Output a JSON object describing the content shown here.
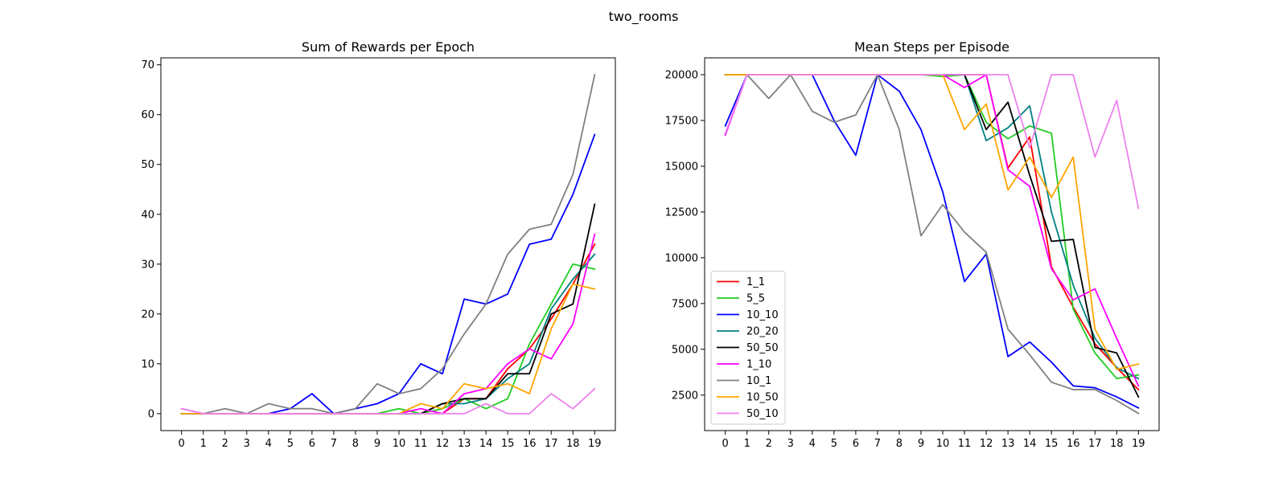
{
  "figure": {
    "suptitle": "two_rooms"
  },
  "chart_data": [
    {
      "type": "line",
      "title": "Sum of Rewards per Epoch",
      "xlabel": "",
      "ylabel": "",
      "x": [
        0,
        1,
        2,
        3,
        4,
        5,
        6,
        7,
        8,
        9,
        10,
        11,
        12,
        13,
        14,
        15,
        16,
        17,
        18,
        19
      ],
      "xticks": [
        "0",
        "1",
        "2",
        "3",
        "4",
        "5",
        "6",
        "7",
        "8",
        "9",
        "10",
        "11",
        "12",
        "13",
        "14",
        "15",
        "16",
        "17",
        "18",
        "19"
      ],
      "yticks": [
        0,
        10,
        20,
        30,
        40,
        50,
        60,
        70
      ],
      "ytick_labels": [
        "0",
        "10",
        "20",
        "30",
        "40",
        "50",
        "60",
        "70"
      ],
      "xlim": [
        -0.95,
        19.95
      ],
      "ylim": [
        -3.4,
        71.4
      ],
      "grid": false,
      "legend": null,
      "series": [
        {
          "name": "1_1",
          "color": "#ff0000",
          "values": [
            0,
            0,
            0,
            0,
            0,
            0,
            0,
            0,
            0,
            0,
            0,
            0,
            0,
            3,
            3,
            9,
            13,
            19,
            26,
            34
          ]
        },
        {
          "name": "5_5",
          "color": "#22cc22",
          "values": [
            0,
            0,
            0,
            0,
            0,
            0,
            0,
            0,
            0,
            0,
            1,
            0,
            1,
            3,
            1,
            3,
            14,
            22,
            30,
            29
          ]
        },
        {
          "name": "10_10",
          "color": "#0000ff",
          "values": [
            0,
            0,
            0,
            0,
            0,
            1,
            4,
            0,
            1,
            2,
            4,
            10,
            8,
            23,
            22,
            24,
            34,
            35,
            44,
            56
          ]
        },
        {
          "name": "20_20",
          "color": "#008080",
          "values": [
            0,
            0,
            0,
            0,
            0,
            0,
            0,
            0,
            0,
            0,
            0,
            0,
            2,
            2,
            3,
            7,
            10,
            21,
            27,
            32
          ]
        },
        {
          "name": "50_50",
          "color": "#000000",
          "values": [
            0,
            0,
            0,
            0,
            0,
            0,
            0,
            0,
            0,
            0,
            0,
            0,
            2,
            3,
            3,
            8,
            8,
            20,
            22,
            42
          ]
        },
        {
          "name": "1_10",
          "color": "#ff00ff",
          "values": [
            1,
            0,
            0,
            0,
            0,
            0,
            0,
            0,
            0,
            0,
            0,
            1,
            0,
            4,
            5,
            10,
            13,
            11,
            18,
            36
          ]
        },
        {
          "name": "10_1",
          "color": "#808080",
          "values": [
            0,
            0,
            1,
            0,
            2,
            1,
            1,
            0,
            1,
            6,
            4,
            5,
            9,
            16,
            22,
            32,
            37,
            38,
            48,
            68
          ]
        },
        {
          "name": "10_50",
          "color": "#ffa500",
          "values": [
            0,
            0,
            0,
            0,
            0,
            0,
            0,
            0,
            0,
            0,
            0,
            2,
            1,
            6,
            5,
            6,
            4,
            17,
            26,
            25
          ]
        },
        {
          "name": "50_10",
          "color": "#ee82ee",
          "values": [
            1,
            0,
            0,
            0,
            0,
            0,
            0,
            0,
            0,
            0,
            0,
            0,
            0,
            0,
            2,
            0,
            0,
            4,
            1,
            5
          ]
        }
      ]
    },
    {
      "type": "line",
      "title": "Mean Steps per Episode",
      "xlabel": "",
      "ylabel": "",
      "x": [
        0,
        1,
        2,
        3,
        4,
        5,
        6,
        7,
        8,
        9,
        10,
        11,
        12,
        13,
        14,
        15,
        16,
        17,
        18,
        19
      ],
      "xticks": [
        "0",
        "1",
        "2",
        "3",
        "4",
        "5",
        "6",
        "7",
        "8",
        "9",
        "10",
        "11",
        "12",
        "13",
        "14",
        "15",
        "16",
        "17",
        "18",
        "19"
      ],
      "yticks": [
        2500,
        5000,
        7500,
        10000,
        12500,
        15000,
        17500,
        20000
      ],
      "ytick_labels": [
        "2500",
        "5000",
        "7500",
        "10000",
        "12500",
        "15000",
        "17500",
        "20000"
      ],
      "xlim": [
        -0.95,
        19.95
      ],
      "ylim": [
        560,
        20920
      ],
      "grid": false,
      "legend": "lower-left",
      "series": [
        {
          "name": "1_1",
          "color": "#ff0000",
          "values": [
            20000,
            20000,
            20000,
            20000,
            20000,
            20000,
            20000,
            20000,
            20000,
            20000,
            20000,
            20000,
            20000,
            14900,
            16600,
            9500,
            7300,
            5300,
            4000,
            2800
          ]
        },
        {
          "name": "5_5",
          "color": "#22cc22",
          "values": [
            20000,
            20000,
            20000,
            20000,
            20000,
            20000,
            20000,
            20000,
            20000,
            20000,
            19900,
            20000,
            17400,
            16500,
            17200,
            16800,
            7200,
            4800,
            3400,
            3600
          ]
        },
        {
          "name": "10_10",
          "color": "#0000ff",
          "values": [
            17200,
            20000,
            20000,
            20000,
            20000,
            17500,
            15600,
            20000,
            19100,
            17000,
            13600,
            8700,
            10200,
            4600,
            5400,
            4300,
            3000,
            2900,
            2400,
            1800
          ]
        },
        {
          "name": "20_20",
          "color": "#008080",
          "values": [
            20000,
            20000,
            20000,
            20000,
            20000,
            20000,
            20000,
            20000,
            20000,
            20000,
            20000,
            20000,
            16400,
            17100,
            18300,
            12500,
            8500,
            5600,
            4000,
            3400
          ]
        },
        {
          "name": "50_50",
          "color": "#000000",
          "values": [
            20000,
            20000,
            20000,
            20000,
            20000,
            20000,
            20000,
            20000,
            20000,
            20000,
            20000,
            20000,
            17000,
            18500,
            14500,
            10900,
            11000,
            5100,
            4800,
            2400
          ]
        },
        {
          "name": "1_10",
          "color": "#ff00ff",
          "values": [
            16700,
            20000,
            20000,
            20000,
            20000,
            20000,
            20000,
            20000,
            20000,
            20000,
            20000,
            19300,
            20000,
            14800,
            13900,
            9400,
            7700,
            8300,
            5600,
            3000
          ]
        },
        {
          "name": "10_1",
          "color": "#808080",
          "values": [
            20000,
            20000,
            18700,
            20000,
            18000,
            17400,
            17800,
            20000,
            17000,
            11200,
            12900,
            11400,
            10300,
            6100,
            4700,
            3200,
            2800,
            2800,
            2200,
            1500
          ]
        },
        {
          "name": "10_50",
          "color": "#ffa500",
          "values": [
            20000,
            20000,
            20000,
            20000,
            20000,
            20000,
            20000,
            20000,
            20000,
            20000,
            20000,
            17000,
            18400,
            13700,
            15500,
            13300,
            15500,
            6100,
            3900,
            4200
          ]
        },
        {
          "name": "50_10",
          "color": "#ee82ee",
          "values": [
            16800,
            20000,
            20000,
            20000,
            20000,
            20000,
            20000,
            20000,
            20000,
            20000,
            20000,
            20000,
            20000,
            20000,
            16000,
            20000,
            20000,
            15500,
            18600,
            12700
          ]
        }
      ]
    }
  ]
}
